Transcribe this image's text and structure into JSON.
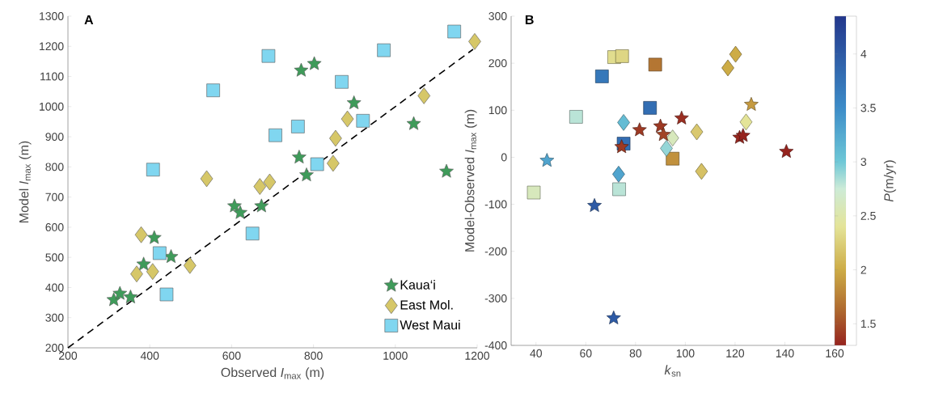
{
  "chart_data": [
    {
      "type": "scatter",
      "title": "A",
      "xlabel": "Observed *I*$_{max}$ (m)",
      "ylabel": "Model *I*$_{max}$ (m)",
      "xlim": [
        200,
        1200
      ],
      "ylim": [
        200,
        1300
      ],
      "xticks": [
        200,
        400,
        600,
        800,
        1000,
        1200
      ],
      "yticks": [
        200,
        300,
        400,
        500,
        600,
        700,
        800,
        900,
        1000,
        1100,
        1200,
        1300
      ],
      "legend": "bottom right",
      "grid": false,
      "series": [
        {
          "name": "Kaua‘i",
          "marker": "star",
          "color": "#3f9b5a",
          "x": [
            802,
            770,
            899,
            1045,
            765,
            1125,
            783,
            607,
            621,
            673,
            411,
            452,
            385,
            312,
            327,
            353
          ],
          "values": [
            1142,
            1120,
            1012,
            943,
            832,
            785,
            773,
            670,
            648,
            670,
            565,
            502,
            477,
            359,
            380,
            368
          ]
        },
        {
          "name": "East Mol.",
          "marker": "diamond",
          "color": "#d6c768",
          "x": [
            1194,
            1070,
            883,
            854,
            848,
            539,
            669,
            693,
            379,
            498,
            368,
            407
          ],
          "values": [
            1216,
            1036,
            959,
            895,
            812,
            761,
            735,
            750,
            575,
            473,
            445,
            453
          ]
        },
        {
          "name": "West Maui",
          "marker": "square",
          "color": "#80d6f0",
          "x": [
            1144,
            972,
            690,
            555,
            869,
            921,
            762,
            707,
            809,
            408,
            424,
            441,
            651
          ],
          "values": [
            1249,
            1187,
            1168,
            1054,
            1082,
            953,
            934,
            905,
            809,
            791,
            514,
            377,
            579
          ]
        },
        {
          "type": "line",
          "line_style": "dashed",
          "marker": "none",
          "color": "#000000",
          "x": [
            200,
            1190
          ],
          "values": [
            200,
            1190
          ]
        }
      ]
    },
    {
      "type": "scatter",
      "title": "B",
      "xlabel": "*k*$_{sn}$",
      "ylabel": "Model-Observed *I*$_{max}$ (m)",
      "clabel": "*P*(m/yr)",
      "xlim": [
        30,
        160
      ],
      "ylim": [
        -400,
        300
      ],
      "xticks": [
        40,
        60,
        80,
        100,
        120,
        140,
        160
      ],
      "yticks": [
        -400,
        -300,
        -200,
        -100,
        0,
        100,
        200,
        300
      ],
      "clim": [
        1.3,
        4.35
      ],
      "cticks": [
        1.5,
        2,
        2.5,
        3,
        3.5,
        4
      ],
      "legend": false,
      "grid": false,
      "series": [
        {
          "marker": "square",
          "x": [
            71.4,
            74.6,
            66.5,
            87.9,
            85.8,
            56.1,
            75.2,
            94.9,
            73.4,
            39.1
          ],
          "values": [
            213,
            215,
            172,
            197,
            105,
            86,
            29,
            -3,
            -68,
            -75
          ],
          "cvalues": [
            2.35,
            2.3,
            3.7,
            1.7,
            3.8,
            2.8,
            3.8,
            1.85,
            2.8,
            2.6
          ],
          "colors": [
            "#e1dd8e",
            "#ded684",
            "#3678ba",
            "#b47633",
            "#336eb3",
            "#bae4d7",
            "#336eb3",
            "#c1913d",
            "#bae4d7",
            "#d7e8bc"
          ]
        },
        {
          "marker": "diamond",
          "x": [
            120.2,
            117.1,
            75.2,
            124.4,
            104.6,
            94.9,
            92.4,
            73.2,
            106.5
          ],
          "values": [
            219,
            190,
            74,
            75,
            54,
            41,
            19,
            -36,
            -30
          ],
          "cvalues": [
            2.0,
            2.0,
            3.1,
            2.4,
            2.2,
            2.6,
            2.9,
            3.3,
            2.15
          ],
          "colors": [
            "#cdac46",
            "#cdac46",
            "#64bcd4",
            "#e4e498",
            "#d9c86f",
            "#d7e8bc",
            "#94d6d7",
            "#50a4ce",
            "#d6c165"
          ]
        },
        {
          "marker": "star",
          "x": [
            44.4,
            81.6,
            90,
            98.5,
            91.2,
            74.4,
            126.5,
            121.8,
            123.2,
            140.6,
            63.5,
            71.2
          ],
          "values": [
            -7,
            58,
            66,
            83,
            48,
            22,
            112,
            42,
            46,
            12,
            -103,
            -342
          ],
          "cvalues": [
            3.3,
            1.4,
            1.4,
            1.35,
            1.45,
            1.4,
            1.9,
            1.32,
            1.3,
            1.3,
            4.0,
            4.0
          ],
          "colors": [
            "#50a4ce",
            "#9d3923",
            "#9d3923",
            "#9a2e21",
            "#a14426",
            "#9d3923",
            "#c59a40",
            "#97271f",
            "#96231e",
            "#96231e",
            "#2d5aa5",
            "#2d5aa5"
          ]
        }
      ]
    }
  ]
}
